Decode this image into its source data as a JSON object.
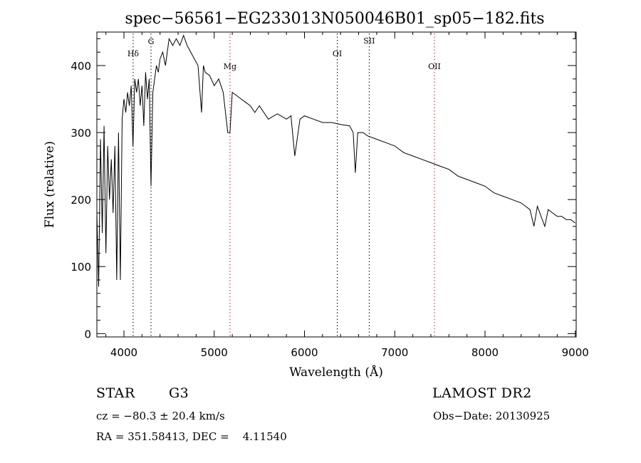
{
  "chart_data": {
    "type": "line",
    "title": "spec−56561−EG233013N050046B01_sp05−182.fits",
    "xlabel": "Wavelength (Å)",
    "ylabel": "Flux (relative)",
    "xlim": [
      3700,
      9010
    ],
    "ylim": [
      -5,
      450
    ],
    "xticks": [
      4000,
      5000,
      6000,
      7000,
      8000,
      9000
    ],
    "xtick_labels": [
      "4000",
      "5000",
      "6000",
      "7000",
      "8000",
      "9000"
    ],
    "yticks": [
      0,
      100,
      200,
      300,
      400
    ],
    "ytick_labels": [
      "0",
      "100",
      "200",
      "300",
      "400"
    ],
    "grid": false,
    "series": [
      {
        "name": "flux",
        "x": [
          3700,
          3720,
          3740,
          3760,
          3780,
          3800,
          3820,
          3840,
          3860,
          3880,
          3900,
          3920,
          3940,
          3960,
          3980,
          4000,
          4020,
          4040,
          4060,
          4080,
          4100,
          4120,
          4140,
          4160,
          4180,
          4200,
          4220,
          4240,
          4260,
          4280,
          4300,
          4320,
          4340,
          4360,
          4380,
          4400,
          4430,
          4460,
          4500,
          4540,
          4580,
          4620,
          4660,
          4700,
          4740,
          4780,
          4820,
          4860,
          4880,
          4900,
          4950,
          5000,
          5050,
          5100,
          5150,
          5175,
          5200,
          5250,
          5300,
          5350,
          5400,
          5450,
          5500,
          5600,
          5700,
          5800,
          5850,
          5893,
          5950,
          6000,
          6100,
          6200,
          6300,
          6400,
          6500,
          6540,
          6563,
          6590,
          6650,
          6700,
          6800,
          6900,
          7000,
          7100,
          7200,
          7300,
          7400,
          7500,
          7600,
          7700,
          7800,
          7900,
          8000,
          8100,
          8200,
          8300,
          8400,
          8498,
          8542,
          8580,
          8662,
          8700,
          8750,
          8800,
          8850,
          8900,
          8950,
          9000
        ],
        "y": [
          180,
          70,
          290,
          150,
          310,
          120,
          280,
          200,
          260,
          180,
          280,
          80,
          300,
          80,
          320,
          350,
          330,
          360,
          340,
          370,
          280,
          380,
          360,
          380,
          340,
          370,
          310,
          390,
          350,
          380,
          220,
          360,
          380,
          400,
          390,
          410,
          420,
          400,
          440,
          430,
          440,
          430,
          445,
          430,
          420,
          410,
          400,
          330,
          400,
          390,
          385,
          370,
          380,
          360,
          300,
          300,
          360,
          355,
          350,
          345,
          340,
          330,
          340,
          320,
          328,
          320,
          325,
          265,
          320,
          325,
          320,
          315,
          315,
          312,
          310,
          300,
          240,
          300,
          300,
          295,
          290,
          285,
          280,
          270,
          265,
          260,
          255,
          250,
          245,
          235,
          230,
          225,
          220,
          210,
          205,
          200,
          195,
          185,
          160,
          190,
          160,
          185,
          180,
          175,
          175,
          170,
          170,
          165
        ]
      }
    ],
    "lines": [
      {
        "label": "Hδ",
        "x": 4102,
        "color": "#000000"
      },
      {
        "label": "G",
        "x": 4300,
        "color": "#000000"
      },
      {
        "label": "Mg",
        "x": 5175,
        "color": "#ff0000"
      },
      {
        "label": "OI",
        "x": 6363,
        "color": "#000000"
      },
      {
        "label": "SII",
        "x": 6717,
        "color": "#000000"
      },
      {
        "label": "OII",
        "x": 7440,
        "color": "#ff0000"
      }
    ]
  },
  "info": {
    "class": "STAR",
    "subclass": "G3",
    "cz": "cz = −80.3 ± 20.4 km/s",
    "radec": "RA = 351.58413, DEC =    4.11540",
    "survey": "LAMOST DR2",
    "obsdate": "Obs−Date: 20130925"
  }
}
